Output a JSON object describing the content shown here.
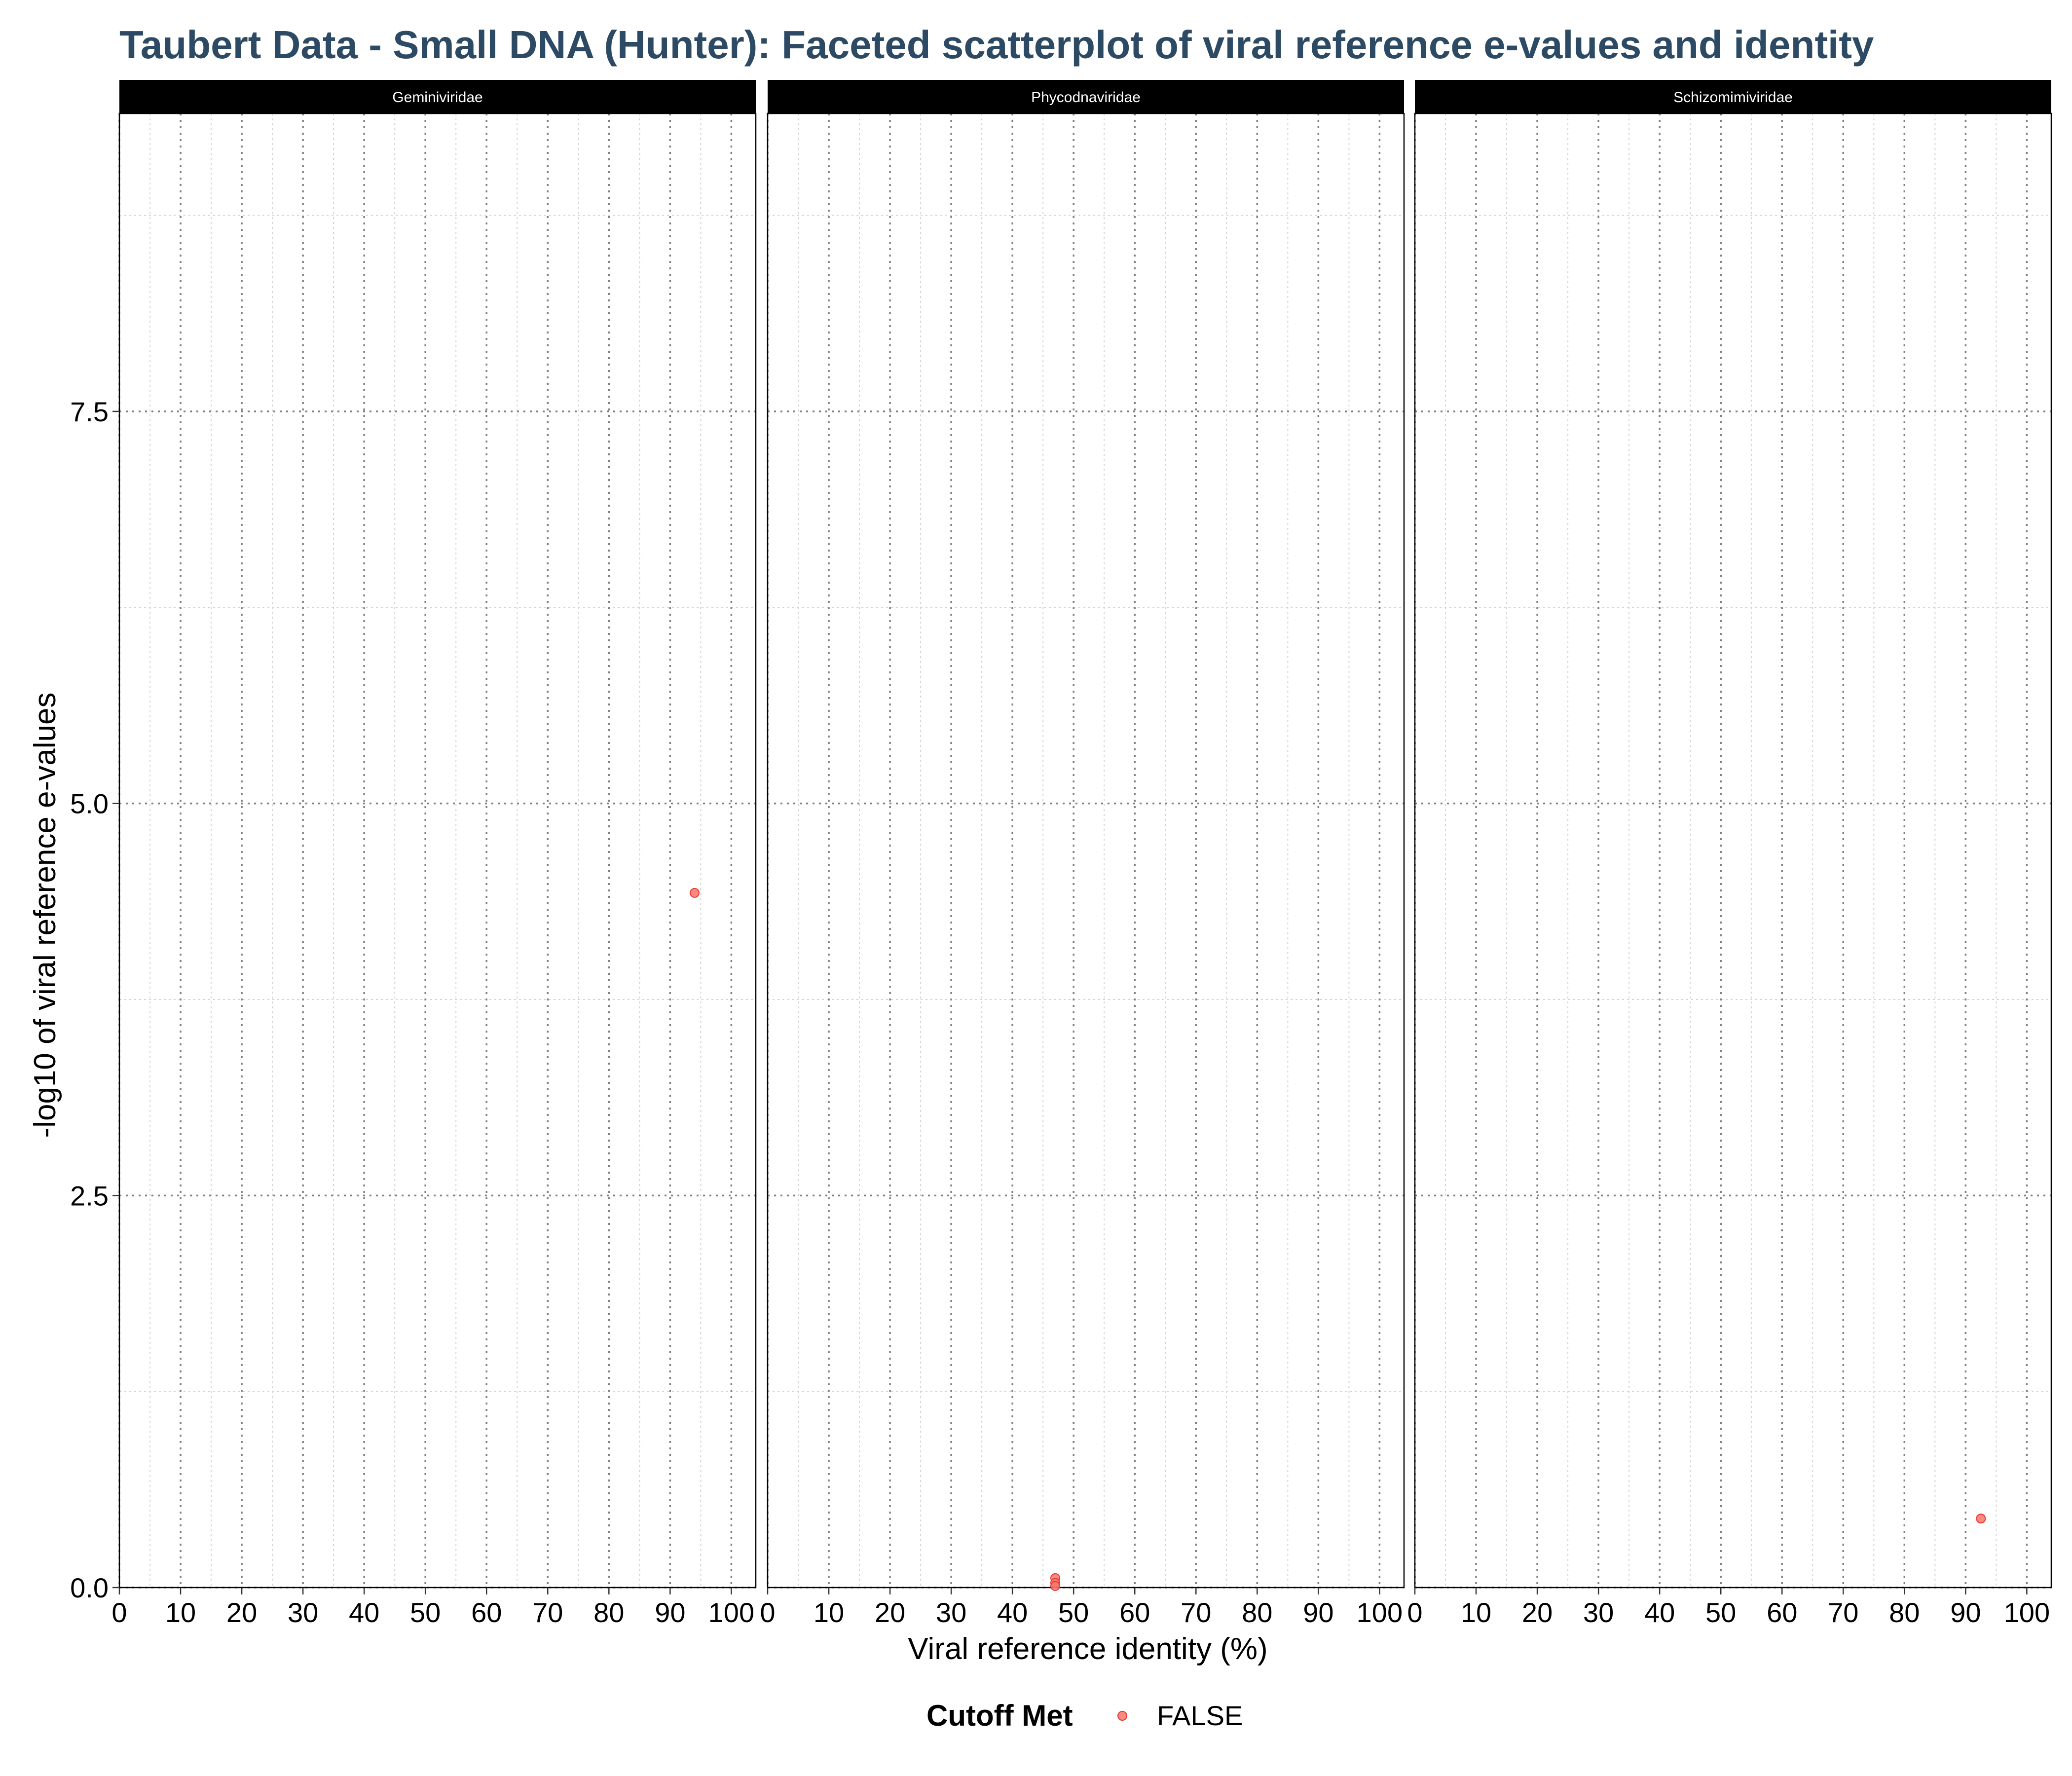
{
  "chart_data": {
    "type": "scatter",
    "title": "Taubert Data - Small DNA (Hunter): Faceted scatterplot of viral reference e-values and identity",
    "xlabel": "Viral reference identity (%)",
    "ylabel": "-log10 of viral reference e-values",
    "xlim": [
      0,
      104
    ],
    "ylim": [
      0,
      9.4
    ],
    "x_ticks": [
      0,
      10,
      20,
      30,
      40,
      50,
      60,
      70,
      80,
      90,
      100
    ],
    "y_ticks": [
      0,
      2.5,
      5,
      7.5
    ],
    "x_tick_labels": [
      "0",
      "10",
      "20",
      "30",
      "40",
      "50",
      "60",
      "70",
      "80",
      "90",
      "100"
    ],
    "y_tick_labels": [
      "0.0",
      "2.5",
      "5.0",
      "7.5"
    ],
    "grid": true,
    "legend": {
      "title": "Cutoff Met",
      "position": "bottom",
      "entries": [
        {
          "label": "FALSE",
          "color": "#f8766d"
        }
      ]
    },
    "colors": {
      "title": "#2c4a63",
      "point": "#f8766d",
      "point_stroke": "#e8392e",
      "strip_bg": "#000000",
      "major_grid": "#7f7f7f",
      "minor_grid": "#d3d3d3"
    },
    "facets": [
      {
        "label": "Geminiviridae",
        "points": [
          {
            "x": 94,
            "y": 4.43
          }
        ]
      },
      {
        "label": "Phycodnaviridae",
        "points": [
          {
            "x": 47,
            "y": 0.06
          },
          {
            "x": 47,
            "y": 0.03
          },
          {
            "x": 47,
            "y": 0.01
          }
        ]
      },
      {
        "label": "Schizomimiviridae",
        "points": [
          {
            "x": 92.5,
            "y": 0.44
          }
        ]
      }
    ]
  }
}
